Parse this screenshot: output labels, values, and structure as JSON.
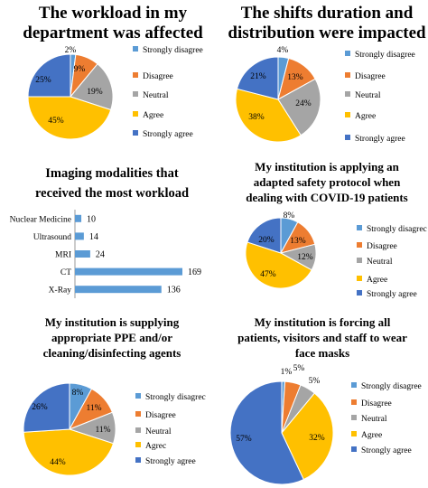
{
  "colors": {
    "strongly_disagree": "#5B9BD5",
    "disagree": "#ED7D31",
    "neutral": "#A5A5A5",
    "agree": "#FFC000",
    "strongly_agree": "#4472C4",
    "bar": "#5B9BD5"
  },
  "chart_data": [
    {
      "type": "pie",
      "title": [
        "The workload in my",
        "department was affected"
      ],
      "categories": [
        "Strongly disagree",
        "Disagree",
        "Neutral",
        "Agree",
        "Strongly agree"
      ],
      "values": [
        2,
        9,
        19,
        45,
        25
      ],
      "labels": [
        "2%",
        "9%",
        "19%",
        "45%",
        "25%"
      ],
      "legend": "right"
    },
    {
      "type": "pie",
      "title": [
        "The shifts duration and",
        "distribution were impacted"
      ],
      "categories": [
        "Strongly disagree",
        "Disagree",
        "Neutral",
        "Agree",
        "Strongly agree"
      ],
      "values": [
        4,
        13,
        24,
        38,
        21
      ],
      "labels": [
        "4%",
        "13%",
        "24%",
        "38%",
        "21%"
      ],
      "legend": "right"
    },
    {
      "type": "bar",
      "orientation": "horizontal",
      "title": [
        "Imaging modalities that",
        "received the most workload"
      ],
      "categories": [
        "Nuclear Medicine",
        "Ultrasound",
        "MRI",
        "CT",
        "X-Ray"
      ],
      "values": [
        10,
        14,
        24,
        169,
        136
      ],
      "labels": [
        "10",
        "14",
        "24",
        "169",
        "136"
      ]
    },
    {
      "type": "pie",
      "title": [
        "My institution is applying an",
        "adapted safety protocol when",
        "dealing with COVID-19 patients"
      ],
      "categories": [
        "Strongly disagrec",
        "Disagree",
        "Neutral",
        "Agree",
        "Strongly agree"
      ],
      "values": [
        8,
        13,
        12,
        47,
        20
      ],
      "labels": [
        "8%",
        "13%",
        "12%",
        "47%",
        "20%"
      ],
      "legend": "right"
    },
    {
      "type": "pie",
      "title": [
        "My institution is supplying",
        "appropriate PPE and/or",
        "cleaning/disinfecting agents"
      ],
      "categories": [
        "Strongly disagrec",
        "Disagree",
        "Neutral",
        "Agrec",
        "Strongly agree"
      ],
      "values": [
        8,
        11,
        11,
        44,
        26
      ],
      "labels": [
        "8%",
        "11%",
        "11%",
        "44%",
        "26%"
      ],
      "legend": "right"
    },
    {
      "type": "pie",
      "title": [
        "My institution is forcing all",
        "patients, visitors and staff to wear",
        "face masks"
      ],
      "categories": [
        "Strongly disagree",
        "Disagree",
        "Neutral",
        "Agree",
        "Strongly agree"
      ],
      "values": [
        1,
        5,
        5,
        32,
        57
      ],
      "labels": [
        "1%",
        "5%",
        "5%",
        "32%",
        "57%"
      ],
      "legend": "right"
    }
  ]
}
